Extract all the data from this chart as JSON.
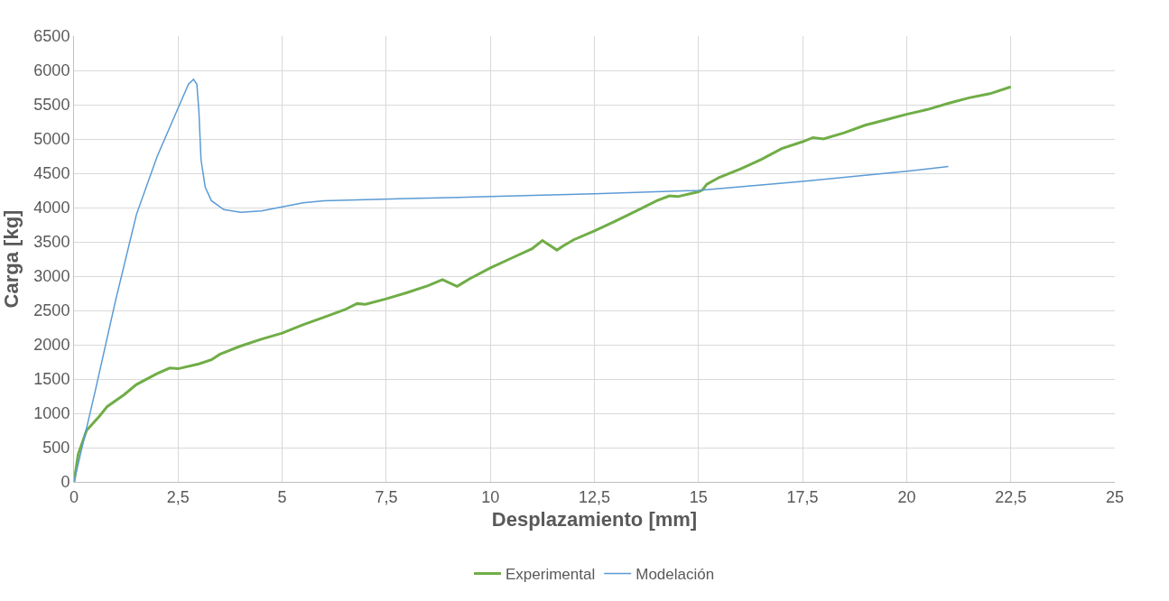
{
  "chart_data": {
    "type": "line",
    "xlabel": "Desplazamiento [mm]",
    "ylabel": "Carga [kg]",
    "xlim": [
      0,
      25
    ],
    "xticks": [
      0,
      {
        "value": 2.5,
        "label": "2,5"
      },
      5,
      {
        "value": 7.5,
        "label": "7,5"
      },
      10,
      {
        "value": 12.5,
        "label": "12,5"
      },
      15,
      {
        "value": 17.5,
        "label": "17,5"
      },
      20,
      {
        "value": 22.5,
        "label": "22,5"
      },
      25
    ],
    "ylim": [
      0,
      6500
    ],
    "yticks": [
      0,
      500,
      1000,
      1500,
      2000,
      2500,
      3000,
      3500,
      4000,
      4500,
      5000,
      5500,
      6000,
      6500
    ],
    "grid": true,
    "legend": "bottom",
    "marker": "none",
    "line_style": "solid",
    "series": [
      {
        "name": "Experimental",
        "color": "#70ad47",
        "x": [
          0,
          0.1,
          0.3,
          0.6,
          0.8,
          1.2,
          1.5,
          2,
          2.3,
          2.5,
          3,
          3.3,
          3.5,
          4,
          4.5,
          5,
          5.5,
          6,
          6.5,
          6.8,
          7,
          7.5,
          8,
          8.5,
          8.85,
          9.2,
          9.5,
          10,
          10.5,
          11,
          11.25,
          11.6,
          11.75,
          12,
          12.5,
          13,
          13.5,
          14,
          14.3,
          14.5,
          15,
          15.1,
          15.2,
          15.5,
          16,
          16.5,
          17,
          17.5,
          17.75,
          18,
          18.5,
          19,
          19.5,
          20,
          20.5,
          21,
          21.5,
          22,
          22.5
        ],
        "values": [
          0,
          400,
          750,
          950,
          1100,
          1270,
          1420,
          1580,
          1660,
          1650,
          1720,
          1780,
          1860,
          1980,
          2080,
          2170,
          2290,
          2400,
          2510,
          2600,
          2590,
          2670,
          2760,
          2860,
          2950,
          2850,
          2960,
          3120,
          3260,
          3400,
          3520,
          3380,
          3440,
          3530,
          3660,
          3800,
          3950,
          4100,
          4170,
          4160,
          4230,
          4260,
          4340,
          4440,
          4560,
          4700,
          4860,
          4960,
          5020,
          5000,
          5090,
          5200,
          5280,
          5360,
          5430,
          5520,
          5600,
          5660,
          5760
        ]
      },
      {
        "name": "Modelación",
        "color": "#5b9bd5",
        "x": [
          0,
          0.5,
          1,
          1.5,
          2,
          2.5,
          2.75,
          2.87,
          2.95,
          3.0,
          3.05,
          3.15,
          3.3,
          3.6,
          4,
          4.5,
          5,
          5.5,
          6,
          8,
          10,
          12.5,
          15,
          17.5,
          20,
          21
        ],
        "values": [
          0,
          1300,
          2650,
          3900,
          4750,
          5450,
          5800,
          5870,
          5800,
          5400,
          4700,
          4300,
          4100,
          3970,
          3930,
          3950,
          4010,
          4070,
          4100,
          4130,
          4160,
          4200,
          4250,
          4380,
          4530,
          4600
        ]
      }
    ]
  }
}
